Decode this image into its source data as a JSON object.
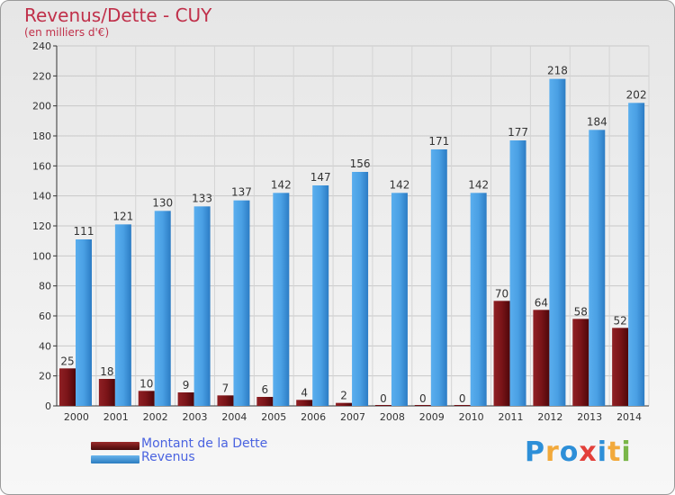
{
  "title": "Revenus/Dette - CUY",
  "subtitle": "(en milliers d'€)",
  "logo": {
    "text": "Proxiti",
    "letters": [
      "P",
      "r",
      "o",
      "x",
      "i",
      "t",
      "i"
    ],
    "colors": [
      "#2d8fd8",
      "#f2a93b",
      "#2d8fd8",
      "#e3403a",
      "#2d8fd8",
      "#f2a93b",
      "#7ab648"
    ]
  },
  "colors": {
    "dette": "#6e0f14",
    "revenus": "#3d95d8"
  },
  "chart_data": {
    "type": "bar",
    "categories": [
      "2000",
      "2001",
      "2002",
      "2003",
      "2004",
      "2005",
      "2006",
      "2007",
      "2008",
      "2009",
      "2010",
      "2011",
      "2012",
      "2013",
      "2014"
    ],
    "series": [
      {
        "name": "Montant de la Dette",
        "values": [
          25,
          18,
          10,
          9,
          7,
          6,
          4,
          2,
          0,
          0,
          0,
          70,
          64,
          58,
          52
        ]
      },
      {
        "name": "Revenus",
        "values": [
          111,
          121,
          130,
          133,
          137,
          142,
          147,
          156,
          142,
          171,
          142,
          177,
          218,
          184,
          202
        ]
      }
    ],
    "ylim": [
      0,
      240
    ],
    "yticks": [
      0,
      20,
      40,
      60,
      80,
      100,
      120,
      140,
      160,
      180,
      200,
      220,
      240
    ],
    "grid": true,
    "legend": "bottom-left"
  }
}
